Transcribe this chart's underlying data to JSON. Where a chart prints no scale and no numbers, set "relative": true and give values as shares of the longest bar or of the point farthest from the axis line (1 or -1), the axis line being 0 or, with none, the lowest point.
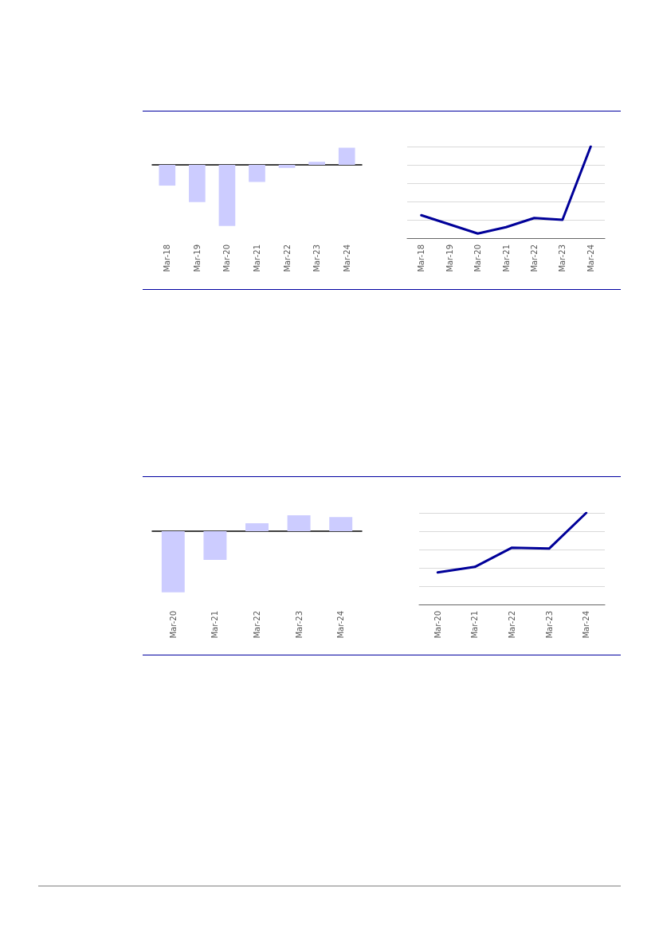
{
  "chart_data": [
    {
      "type": "bar",
      "relative": true,
      "categories": [
        "Mar-18",
        "Mar-19",
        "Mar-20",
        "Mar-21",
        "Mar-22",
        "Mar-23",
        "Mar-24"
      ],
      "values": [
        -0.34,
        -0.61,
        -1,
        -0.28,
        -0.05,
        0.05,
        0.28
      ],
      "color": "#ccccff",
      "grid": false
    },
    {
      "type": "line",
      "relative": true,
      "categories": [
        "Mar-18",
        "Mar-19",
        "Mar-20",
        "Mar-21",
        "Mar-22",
        "Mar-23",
        "Mar-24"
      ],
      "values": [
        0.25,
        0.15,
        0.05,
        0.12,
        0.22,
        0.2,
        1
      ],
      "color": "#000099",
      "grid": "y",
      "marker": "none",
      "line_style": "solid"
    },
    {
      "type": "bar",
      "relative": true,
      "categories": [
        "Mar-20",
        "Mar-21",
        "Mar-22",
        "Mar-23",
        "Mar-24"
      ],
      "values": [
        -1,
        -0.47,
        0.13,
        0.26,
        0.23
      ],
      "color": "#ccccff",
      "grid": false
    },
    {
      "type": "line",
      "relative": true,
      "categories": [
        "Mar-20",
        "Mar-21",
        "Mar-22",
        "Mar-23",
        "Mar-24"
      ],
      "values": [
        0.35,
        0.41,
        0.62,
        0.61,
        1
      ],
      "color": "#000099",
      "grid": "y",
      "marker": "none",
      "line_style": "solid"
    }
  ]
}
